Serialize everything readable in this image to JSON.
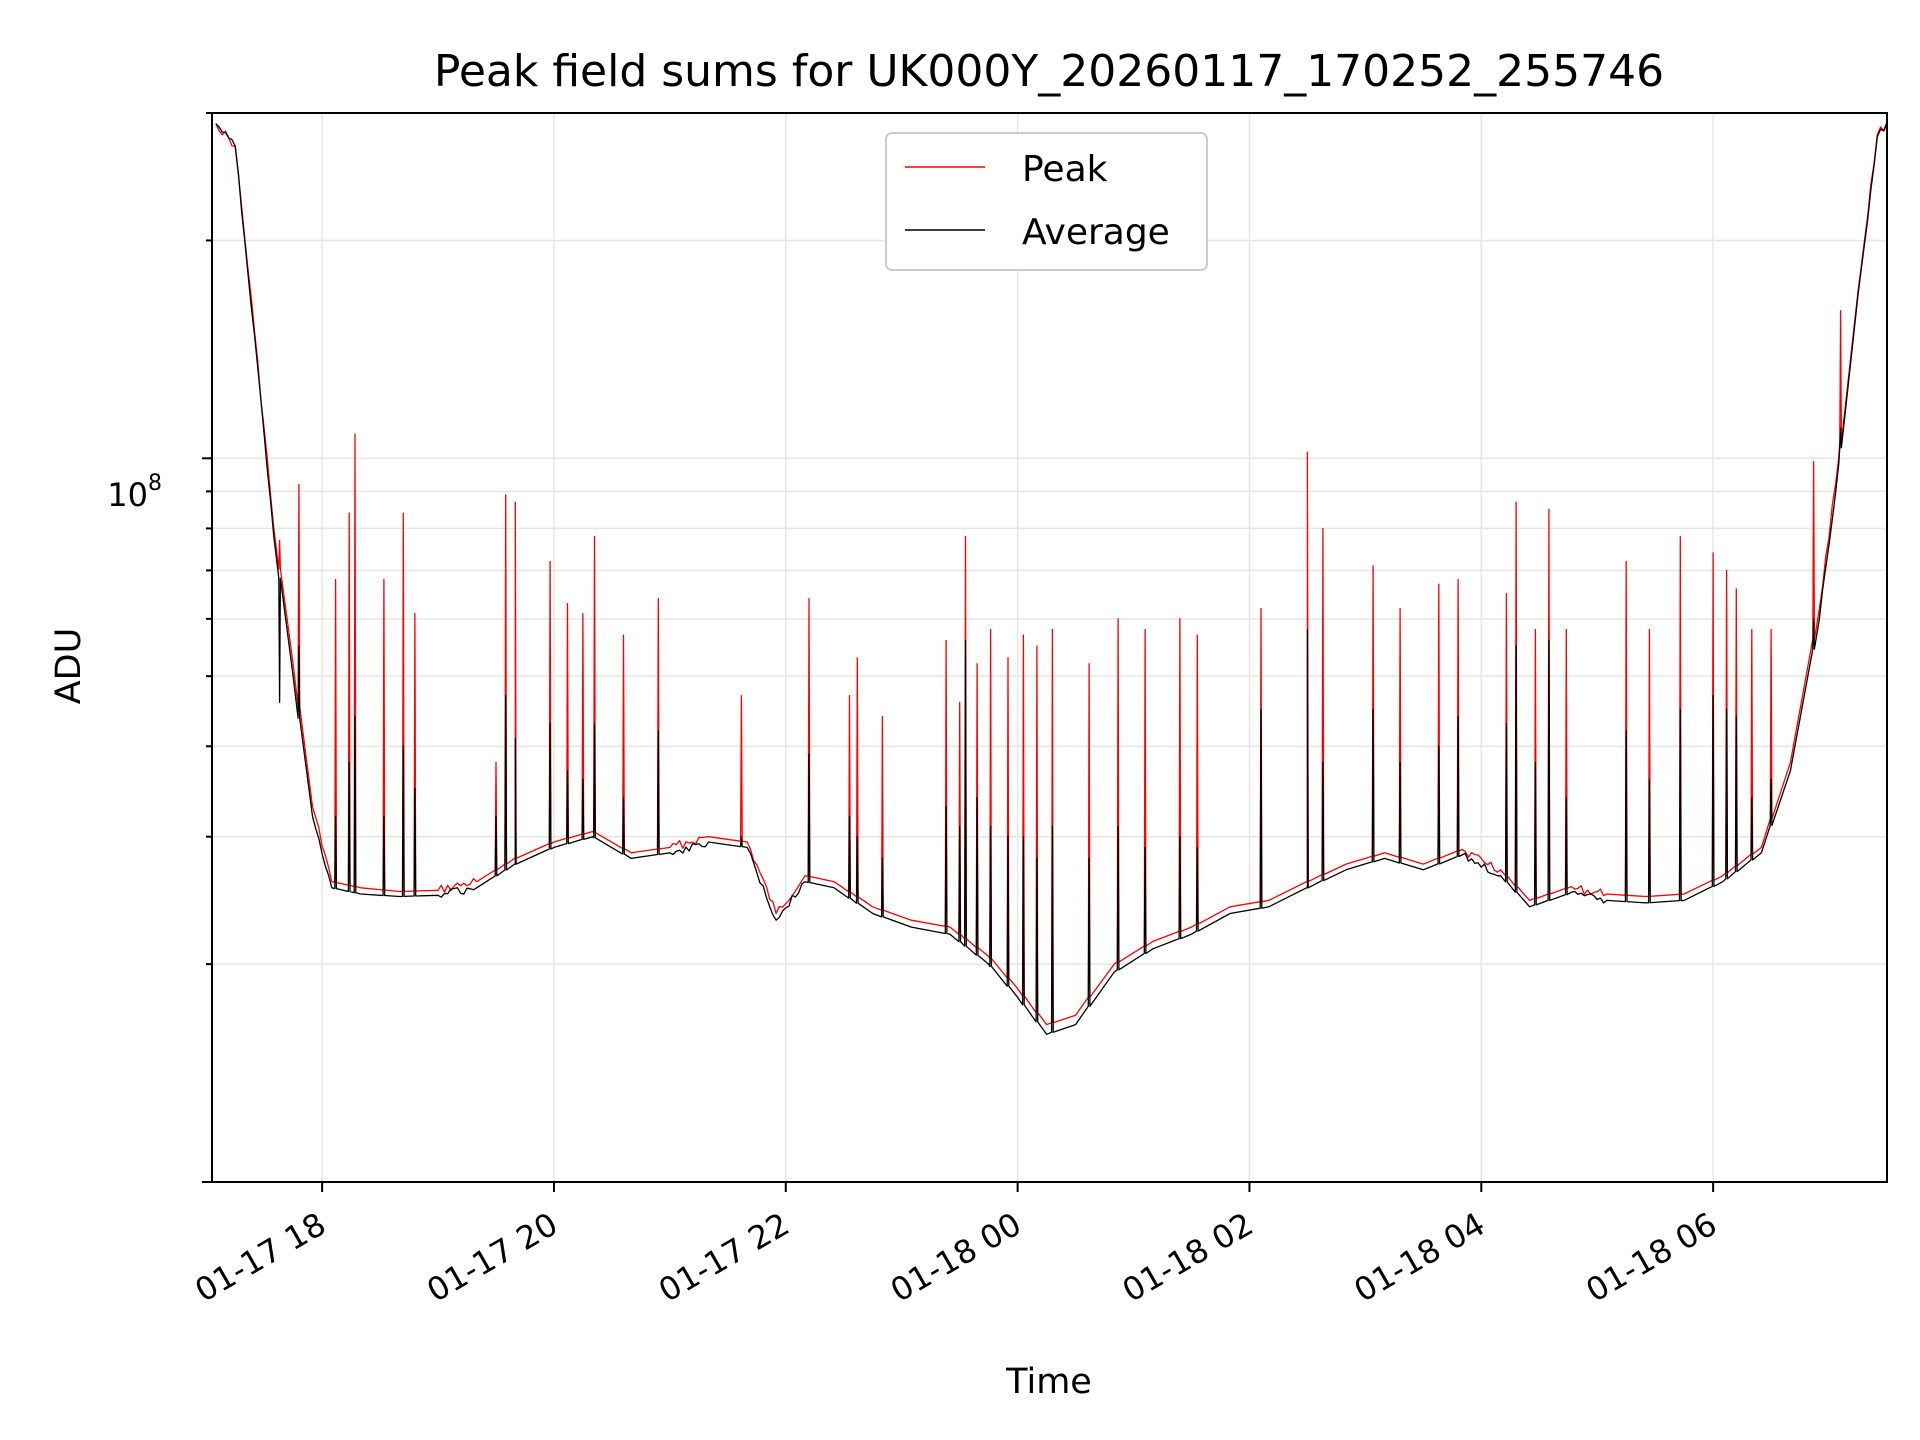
{
  "chart_data": {
    "type": "line",
    "title": "Peak field sums for UK000Y_20260117_170252_255746",
    "xlabel": "Time",
    "ylabel": "ADU",
    "y_scale": "log",
    "ylim": [
      10000000,
      300000000
    ],
    "xlim": [
      "2026-01-17 17:03",
      "2026-01-18 07:30"
    ],
    "x_ticks": [
      {
        "time": "2026-01-17 18:00",
        "label": "01-17 18"
      },
      {
        "time": "2026-01-17 20:00",
        "label": "01-17 20"
      },
      {
        "time": "2026-01-17 22:00",
        "label": "01-17 22"
      },
      {
        "time": "2026-01-18 00:00",
        "label": "01-18 00"
      },
      {
        "time": "2026-01-18 02:00",
        "label": "01-18 02"
      },
      {
        "time": "2026-01-18 04:00",
        "label": "01-18 04"
      },
      {
        "time": "2026-01-18 06:00",
        "label": "01-18 06"
      }
    ],
    "y_tick_major": {
      "value": 100000000,
      "base": "10",
      "exp": "8"
    },
    "grid": true,
    "legend_position": "top-center",
    "colors": {
      "peak": "#ff0000",
      "average": "#000000",
      "grid": "#e6e6e6"
    },
    "series": [
      {
        "name": "Peak",
        "points": [
          [
            "2026-01-17 17:05",
            290000000
          ],
          [
            "2026-01-17 17:15",
            270000000
          ],
          [
            "2026-01-17 17:25",
            150000000
          ],
          [
            "2026-01-17 17:35",
            80000000
          ],
          [
            "2026-01-17 17:45",
            52000000
          ],
          [
            "2026-01-17 17:55",
            33000000
          ],
          [
            "2026-01-17 18:05",
            26000000
          ],
          [
            "2026-01-17 18:20",
            25500000
          ],
          [
            "2026-01-17 18:40",
            25200000
          ],
          [
            "2026-01-17 19:00",
            25300000
          ],
          [
            "2026-01-17 19:20",
            26000000
          ],
          [
            "2026-01-17 19:40",
            28000000
          ],
          [
            "2026-01-17 20:00",
            29500000
          ],
          [
            "2026-01-17 20:20",
            30500000
          ],
          [
            "2026-01-17 20:40",
            28500000
          ],
          [
            "2026-01-17 21:00",
            29000000
          ],
          [
            "2026-01-17 21:20",
            30000000
          ],
          [
            "2026-01-17 21:40",
            29500000
          ],
          [
            "2026-01-17 21:55",
            23500000
          ],
          [
            "2026-01-17 22:10",
            26500000
          ],
          [
            "2026-01-17 22:25",
            26000000
          ],
          [
            "2026-01-17 22:45",
            24000000
          ],
          [
            "2026-01-17 23:05",
            23000000
          ],
          [
            "2026-01-17 23:25",
            22500000
          ],
          [
            "2026-01-17 23:45",
            20500000
          ],
          [
            "2026-01-18 00:00",
            18500000
          ],
          [
            "2026-01-18 00:15",
            16500000
          ],
          [
            "2026-01-18 00:30",
            17000000
          ],
          [
            "2026-01-18 00:50",
            20000000
          ],
          [
            "2026-01-18 01:10",
            21500000
          ],
          [
            "2026-01-18 01:30",
            22500000
          ],
          [
            "2026-01-18 01:50",
            24000000
          ],
          [
            "2026-01-18 02:10",
            24500000
          ],
          [
            "2026-01-18 02:30",
            26000000
          ],
          [
            "2026-01-18 02:50",
            27500000
          ],
          [
            "2026-01-18 03:10",
            28500000
          ],
          [
            "2026-01-18 03:30",
            27500000
          ],
          [
            "2026-01-18 03:50",
            28800000
          ],
          [
            "2026-01-18 04:10",
            27000000
          ],
          [
            "2026-01-18 04:25",
            24500000
          ],
          [
            "2026-01-18 04:45",
            25500000
          ],
          [
            "2026-01-18 05:05",
            25000000
          ],
          [
            "2026-01-18 05:25",
            24800000
          ],
          [
            "2026-01-18 05:45",
            25000000
          ],
          [
            "2026-01-18 06:05",
            26500000
          ],
          [
            "2026-01-18 06:25",
            29000000
          ],
          [
            "2026-01-18 06:40",
            38000000
          ],
          [
            "2026-01-18 06:55",
            62000000
          ],
          [
            "2026-01-18 07:05",
            100000000
          ],
          [
            "2026-01-18 07:15",
            170000000
          ],
          [
            "2026-01-18 07:25",
            280000000
          ],
          [
            "2026-01-18 07:30",
            292000000
          ]
        ]
      },
      {
        "name": "Average",
        "points": [
          [
            "2026-01-17 17:05",
            290000000
          ],
          [
            "2026-01-17 17:15",
            270000000
          ],
          [
            "2026-01-17 17:25",
            148000000
          ],
          [
            "2026-01-17 17:35",
            78000000
          ],
          [
            "2026-01-17 17:45",
            50000000
          ],
          [
            "2026-01-17 17:55",
            32000000
          ],
          [
            "2026-01-17 18:05",
            25500000
          ],
          [
            "2026-01-17 18:20",
            25000000
          ],
          [
            "2026-01-17 18:40",
            24800000
          ],
          [
            "2026-01-17 19:00",
            24900000
          ],
          [
            "2026-01-17 19:20",
            25500000
          ],
          [
            "2026-01-17 19:40",
            27500000
          ],
          [
            "2026-01-17 20:00",
            29000000
          ],
          [
            "2026-01-17 20:20",
            30000000
          ],
          [
            "2026-01-17 20:40",
            28000000
          ],
          [
            "2026-01-17 21:00",
            28500000
          ],
          [
            "2026-01-17 21:20",
            29500000
          ],
          [
            "2026-01-17 21:40",
            29000000
          ],
          [
            "2026-01-17 21:55",
            23000000
          ],
          [
            "2026-01-17 22:10",
            26000000
          ],
          [
            "2026-01-17 22:25",
            25500000
          ],
          [
            "2026-01-17 22:45",
            23500000
          ],
          [
            "2026-01-17 23:05",
            22500000
          ],
          [
            "2026-01-17 23:25",
            22000000
          ],
          [
            "2026-01-17 23:45",
            20000000
          ],
          [
            "2026-01-18 00:00",
            18000000
          ],
          [
            "2026-01-18 00:15",
            16000000
          ],
          [
            "2026-01-18 00:30",
            16500000
          ],
          [
            "2026-01-18 00:50",
            19500000
          ],
          [
            "2026-01-18 01:10",
            21000000
          ],
          [
            "2026-01-18 01:30",
            22000000
          ],
          [
            "2026-01-18 01:50",
            23500000
          ],
          [
            "2026-01-18 02:10",
            24000000
          ],
          [
            "2026-01-18 02:30",
            25500000
          ],
          [
            "2026-01-18 02:50",
            27000000
          ],
          [
            "2026-01-18 03:10",
            28000000
          ],
          [
            "2026-01-18 03:30",
            27000000
          ],
          [
            "2026-01-18 03:50",
            28300000
          ],
          [
            "2026-01-18 04:10",
            26500000
          ],
          [
            "2026-01-18 04:25",
            24000000
          ],
          [
            "2026-01-18 04:45",
            25000000
          ],
          [
            "2026-01-18 05:05",
            24500000
          ],
          [
            "2026-01-18 05:25",
            24300000
          ],
          [
            "2026-01-18 05:45",
            24500000
          ],
          [
            "2026-01-18 06:05",
            26000000
          ],
          [
            "2026-01-18 06:25",
            28500000
          ],
          [
            "2026-01-18 06:40",
            37000000
          ],
          [
            "2026-01-18 06:55",
            60000000
          ],
          [
            "2026-01-18 07:05",
            98000000
          ],
          [
            "2026-01-18 07:15",
            168000000
          ],
          [
            "2026-01-18 07:25",
            278000000
          ],
          [
            "2026-01-18 07:30",
            290000000
          ]
        ]
      }
    ],
    "spikes": [
      [
        "2026-01-17 17:38",
        77000000,
        46000000
      ],
      [
        "2026-01-17 17:48",
        92000000,
        55000000
      ],
      [
        "2026-01-17 18:07",
        68000000,
        32000000
      ],
      [
        "2026-01-17 18:14",
        84000000,
        38000000
      ],
      [
        "2026-01-17 18:17",
        108000000,
        44000000
      ],
      [
        "2026-01-17 18:32",
        68000000,
        32000000
      ],
      [
        "2026-01-17 18:42",
        84000000,
        40000000
      ],
      [
        "2026-01-17 18:48",
        61000000,
        35000000
      ],
      [
        "2026-01-17 19:30",
        38000000,
        32000000
      ],
      [
        "2026-01-17 19:35",
        89000000,
        47000000
      ],
      [
        "2026-01-17 19:40",
        87000000,
        41000000
      ],
      [
        "2026-01-17 19:58",
        72000000,
        43000000
      ],
      [
        "2026-01-17 20:07",
        63000000,
        37000000
      ],
      [
        "2026-01-17 20:15",
        61000000,
        36000000
      ],
      [
        "2026-01-17 20:21",
        78000000,
        43000000
      ],
      [
        "2026-01-17 20:36",
        57000000,
        34000000
      ],
      [
        "2026-01-17 20:54",
        64000000,
        42000000
      ],
      [
        "2026-01-17 21:37",
        47000000,
        30000000
      ],
      [
        "2026-01-17 22:12",
        64000000,
        39000000
      ],
      [
        "2026-01-17 22:33",
        47000000,
        32000000
      ],
      [
        "2026-01-17 22:37",
        53000000,
        30000000
      ],
      [
        "2026-01-17 22:50",
        44000000,
        28000000
      ],
      [
        "2026-01-17 23:23",
        56000000,
        33000000
      ],
      [
        "2026-01-17 23:30",
        46000000,
        31000000
      ],
      [
        "2026-01-17 23:33",
        78000000,
        56000000
      ],
      [
        "2026-01-17 23:39",
        52000000,
        34000000
      ],
      [
        "2026-01-17 23:46",
        58000000,
        31000000
      ],
      [
        "2026-01-17 23:55",
        53000000,
        30000000
      ],
      [
        "2026-01-18 00:03",
        57000000,
        30000000
      ],
      [
        "2026-01-18 00:10",
        55000000,
        28000000
      ],
      [
        "2026-01-18 00:18",
        58000000,
        31000000
      ],
      [
        "2026-01-18 00:37",
        52000000,
        28000000
      ],
      [
        "2026-01-18 00:52",
        60000000,
        31000000
      ],
      [
        "2026-01-18 01:06",
        58000000,
        29000000
      ],
      [
        "2026-01-18 01:24",
        60000000,
        30000000
      ],
      [
        "2026-01-18 01:33",
        57000000,
        29000000
      ],
      [
        "2026-01-18 02:06",
        62000000,
        45000000
      ],
      [
        "2026-01-18 02:30",
        102000000,
        58000000
      ],
      [
        "2026-01-18 02:38",
        80000000,
        38000000
      ],
      [
        "2026-01-18 03:04",
        71000000,
        45000000
      ],
      [
        "2026-01-18 03:18",
        62000000,
        38000000
      ],
      [
        "2026-01-18 03:38",
        67000000,
        40000000
      ],
      [
        "2026-01-18 03:48",
        68000000,
        44000000
      ],
      [
        "2026-01-18 04:13",
        65000000,
        43000000
      ],
      [
        "2026-01-18 04:18",
        87000000,
        55000000
      ],
      [
        "2026-01-18 04:28",
        58000000,
        38000000
      ],
      [
        "2026-01-18 04:35",
        85000000,
        56000000
      ],
      [
        "2026-01-18 04:44",
        58000000,
        34000000
      ],
      [
        "2026-01-18 05:15",
        72000000,
        42000000
      ],
      [
        "2026-01-18 05:27",
        58000000,
        36000000
      ],
      [
        "2026-01-18 05:43",
        78000000,
        45000000
      ],
      [
        "2026-01-18 06:00",
        74000000,
        47000000
      ],
      [
        "2026-01-18 06:07",
        70000000,
        45000000
      ],
      [
        "2026-01-18 06:12",
        66000000,
        44000000
      ],
      [
        "2026-01-18 06:20",
        58000000,
        34000000
      ],
      [
        "2026-01-18 06:30",
        58000000,
        36000000
      ],
      [
        "2026-01-18 06:52",
        99000000,
        60000000
      ],
      [
        "2026-01-18 07:06",
        160000000,
        110000000
      ]
    ]
  }
}
